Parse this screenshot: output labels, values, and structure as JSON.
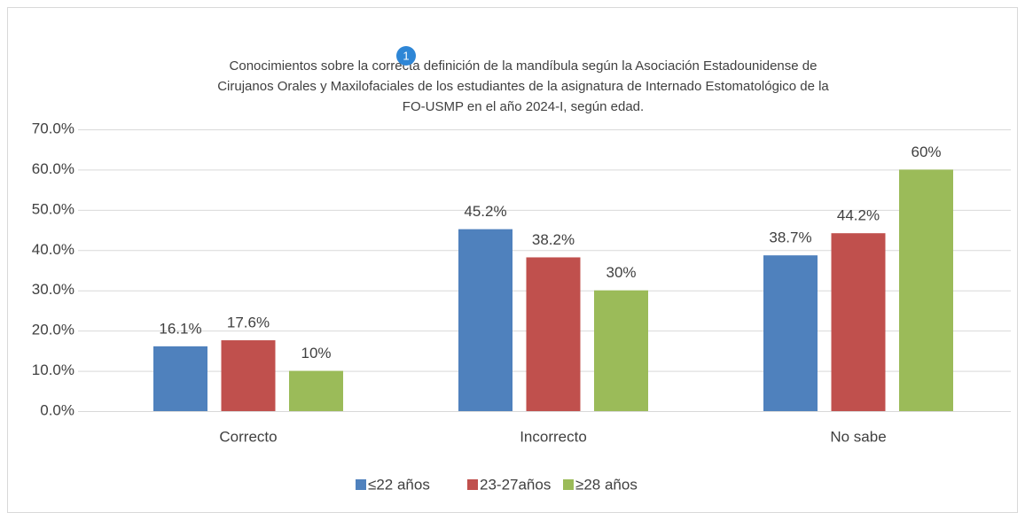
{
  "chart_data": {
    "type": "bar",
    "title": [
      "Conocimientos sobre la correcta definición de la mandíbula según la Asociación Estadounidense de",
      "Cirujanos Orales y Maxilofaciales de los estudiantes de la asignatura de Internado Estomatológico de la",
      "FO-USMP en el año 2024-I, según edad."
    ],
    "annotation": "1",
    "categories": [
      "Correcto",
      "Incorrecto",
      "No sabe"
    ],
    "series": [
      {
        "name": "≤22 años",
        "color": "#4f81bd",
        "values": [
          16.1,
          45.2,
          38.7
        ],
        "value_labels": [
          "16.1%",
          "45.2%",
          "38.7%"
        ]
      },
      {
        "name": "23-27años",
        "color": "#c0504d",
        "values": [
          17.6,
          38.2,
          44.2
        ],
        "value_labels": [
          "17.6%",
          "38.2%",
          "44.2%"
        ]
      },
      {
        "name": "≥28 años",
        "color": "#9bbb59",
        "values": [
          10,
          30,
          60
        ],
        "value_labels": [
          "10%",
          "30%",
          "60%"
        ]
      }
    ],
    "ylim": [
      0,
      70
    ],
    "yticks": [
      {
        "value": 0,
        "label": "0.0%"
      },
      {
        "value": 10,
        "label": "10.0%"
      },
      {
        "value": 20,
        "label": "20.0%"
      },
      {
        "value": 30,
        "label": "30.0%"
      },
      {
        "value": 40,
        "label": "40.0%"
      },
      {
        "value": 50,
        "label": "50.0%"
      },
      {
        "value": 60,
        "label": "60.0%"
      },
      {
        "value": 70,
        "label": "70.0%"
      }
    ],
    "grid": true,
    "legend": "bottom"
  }
}
